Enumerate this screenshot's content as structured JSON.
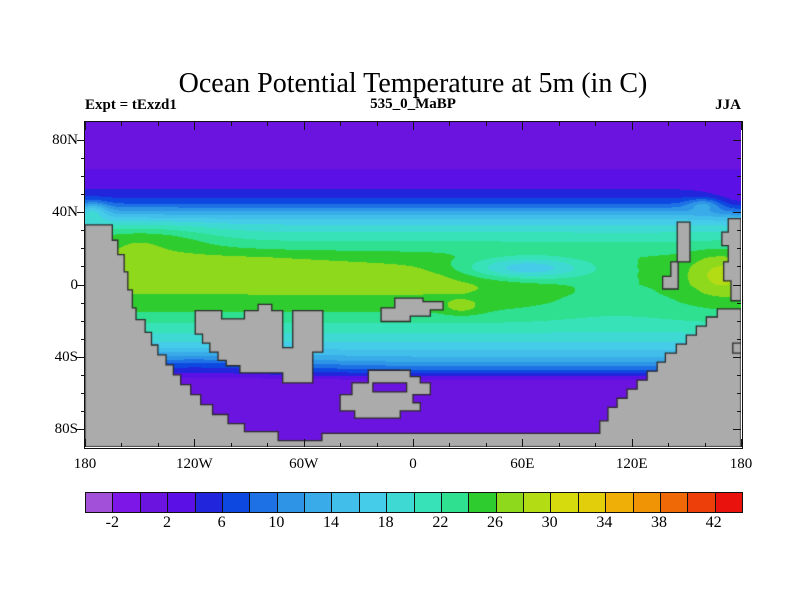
{
  "header": {
    "title": "Ocean Potential Temperature at 5m (in C)",
    "subtitle": "535_0_MaBP",
    "experiment_label": "Expt = tExzd1",
    "season_label": "JJA"
  },
  "axes": {
    "x": {
      "major_ticks": [
        {
          "lon": -180,
          "label": "180"
        },
        {
          "lon": -120,
          "label": "120W"
        },
        {
          "lon": -60,
          "label": "60W"
        },
        {
          "lon": 0,
          "label": "0"
        },
        {
          "lon": 60,
          "label": "60E"
        },
        {
          "lon": 120,
          "label": "120E"
        },
        {
          "lon": 180,
          "label": "180"
        }
      ],
      "minor_step_deg": 20
    },
    "y": {
      "major_ticks": [
        {
          "lat": 80,
          "label": "80N"
        },
        {
          "lat": 40,
          "label": "40N"
        },
        {
          "lat": 0,
          "label": "0"
        },
        {
          "lat": -40,
          "label": "40S"
        },
        {
          "lat": -80,
          "label": "80S"
        }
      ],
      "minor_step_deg": 10
    }
  },
  "colorbar": {
    "level_min": -4,
    "level_step": 2,
    "n_cells": 24,
    "tick_labels": [
      "-2",
      "2",
      "6",
      "10",
      "14",
      "18",
      "22",
      "26",
      "30",
      "34",
      "38",
      "42"
    ],
    "colors": [
      "#A24FD9",
      "#7C17E8",
      "#6C14DF",
      "#5B11E5",
      "#2125DC",
      "#0D49E0",
      "#1E71E4",
      "#2E95E6",
      "#38ABE8",
      "#41BFEA",
      "#45CCE8",
      "#3FD9D4",
      "#37E2B8",
      "#2EE090",
      "#2FCC30",
      "#8FD91C",
      "#B4DC14",
      "#D6DB0E",
      "#E3CE0B",
      "#EFAF07",
      "#F09305",
      "#EF6A06",
      "#ED3F09",
      "#EA120C"
    ]
  },
  "chart_data": {
    "type": "heatmap",
    "subtype": "filled-contour-map",
    "title": "Ocean Potential Temperature at 5m (in C)",
    "units": "C",
    "xlabel_ticks": [
      "180",
      "120W",
      "60W",
      "0",
      "60E",
      "120E",
      "180"
    ],
    "ylabel_ticks": [
      "80N",
      "40N",
      "0",
      "40S",
      "80S"
    ],
    "lon_range": [
      -180,
      180
    ],
    "lat_range": [
      -90,
      90
    ],
    "contour_levels_c": [
      -2,
      0,
      2,
      4,
      6,
      8,
      10,
      12,
      14,
      16,
      18,
      20,
      22,
      24,
      26,
      28,
      30,
      32,
      34,
      36,
      38,
      40,
      42
    ],
    "zonal_profile_lat_tempC": [
      [
        90,
        0.8
      ],
      [
        68,
        1.6
      ],
      [
        60,
        2.4
      ],
      [
        54,
        3.6
      ],
      [
        50,
        5.0
      ],
      [
        47,
        6.4
      ],
      [
        45,
        7.8
      ],
      [
        43,
        9.6
      ],
      [
        41,
        11.5
      ],
      [
        39,
        13.4
      ],
      [
        37,
        15.4
      ],
      [
        34.5,
        17.2
      ],
      [
        32,
        18.7
      ],
      [
        28,
        20.4
      ],
      [
        24,
        22.0
      ],
      [
        20,
        23.4
      ],
      [
        15,
        24.9
      ],
      [
        10,
        25.7
      ],
      [
        5,
        26.2
      ],
      [
        0,
        26.4
      ],
      [
        -5,
        26.0
      ],
      [
        -10,
        25.2
      ],
      [
        -15,
        24.0
      ],
      [
        -20,
        22.5
      ],
      [
        -25,
        20.8
      ],
      [
        -29,
        19.3
      ],
      [
        -33,
        17.6
      ],
      [
        -36,
        16.2
      ],
      [
        -39,
        14.6
      ],
      [
        -42,
        12.8
      ],
      [
        -44,
        11.0
      ],
      [
        -46,
        9.2
      ],
      [
        -48,
        7.2
      ],
      [
        -50,
        5.0
      ],
      [
        -51.5,
        3.2
      ],
      [
        -53,
        1.8
      ],
      [
        -90,
        0.8
      ]
    ],
    "anomalies": [
      {
        "name": "west-tropical-warm-stripe",
        "lon": -120,
        "lat": 11,
        "amp": 1.8,
        "sx": 55,
        "sy": 5.5
      },
      {
        "name": "central-equatorial-warm-lobe",
        "lon": -35,
        "lat": 4,
        "amp": 1.4,
        "sx": 45,
        "sy": 4.5
      },
      {
        "name": "far-east-warm-pool",
        "lon": 168,
        "lat": 6,
        "amp": 3.0,
        "sx": 11,
        "sy": 8
      },
      {
        "name": "cold-tongue-10N",
        "lon": 62,
        "lat": 9,
        "amp": -8.5,
        "sx": 24,
        "sy": 4.5
      },
      {
        "name": "west-boundary-warm-40N",
        "lon": -176,
        "lat": 41,
        "amp": 6,
        "sx": 6,
        "sy": 3.5
      },
      {
        "name": "northeast-cool",
        "lon": 179,
        "lat": 45,
        "amp": -3,
        "sx": 14,
        "sy": 6
      },
      {
        "name": "southwest-coastal-cool",
        "lon": -120,
        "lat": -44,
        "amp": -3.5,
        "sx": 45,
        "sy": 5
      },
      {
        "name": "small-warm-spot-27E-13S",
        "lon": 27,
        "lat": -13,
        "amp": 2.2,
        "sx": 8,
        "sy": 3
      },
      {
        "name": "east-equatorial-cool",
        "lon": 112,
        "lat": -3,
        "amp": -2.6,
        "sx": 33,
        "sy": 12
      },
      {
        "name": "east-boundary-warm-44N",
        "lon": 160,
        "lat": 44.5,
        "amp": 5,
        "sx": 7,
        "sy": 2.5
      },
      {
        "name": "west-subtropical-warm",
        "lon": -150,
        "lat": 26,
        "amp": 4,
        "sx": 28,
        "sy": 6
      }
    ],
    "land": {
      "fill": "#ABABAB",
      "outline": "#2B2B2B",
      "polygons": [
        {
          "name": "southern-supercontinent",
          "rings": [
            [
              [
                -180,
                33
              ],
              [
                -165,
                33
              ],
              [
                -165,
                24.5
              ],
              [
                -162,
                24.5
              ],
              [
                -162,
                16.5
              ],
              [
                -158.5,
                16.5
              ],
              [
                -158.5,
                7
              ],
              [
                -156.5,
                7
              ],
              [
                -156.5,
                -3
              ],
              [
                -154,
                -3
              ],
              [
                -154,
                -13
              ],
              [
                -152,
                -13
              ],
              [
                -152,
                -19.5
              ],
              [
                -147,
                -19.5
              ],
              [
                -147,
                -26.5
              ],
              [
                -143.5,
                -26.5
              ],
              [
                -143.5,
                -33.5
              ],
              [
                -140,
                -33.5
              ],
              [
                -140,
                -39
              ],
              [
                -135.5,
                -39
              ],
              [
                -135.5,
                -44.5
              ],
              [
                -131.5,
                -44.5
              ],
              [
                -131.5,
                -50
              ],
              [
                -127.5,
                -50
              ],
              [
                -127.5,
                -55.5
              ],
              [
                -122,
                -55.5
              ],
              [
                -122,
                -61
              ],
              [
                -116.5,
                -61
              ],
              [
                -116.5,
                -66.5
              ],
              [
                -110,
                -66.5
              ],
              [
                -110,
                -72
              ],
              [
                -101.5,
                -72
              ],
              [
                -101.5,
                -77
              ],
              [
                -92.5,
                -77
              ],
              [
                -92.5,
                -81.5
              ],
              [
                -74,
                -81.5
              ],
              [
                -74,
                -86.5
              ],
              [
                -50,
                -86.5
              ],
              [
                -50,
                -82.5
              ],
              [
                102.5,
                -82.5
              ],
              [
                102.5,
                -75.5
              ],
              [
                107,
                -75.5
              ],
              [
                107,
                -68
              ],
              [
                112,
                -68
              ],
              [
                112,
                -63
              ],
              [
                117.5,
                -63
              ],
              [
                117.5,
                -58
              ],
              [
                123,
                -58
              ],
              [
                123,
                -53
              ],
              [
                128.5,
                -53
              ],
              [
                128.5,
                -48
              ],
              [
                134,
                -48
              ],
              [
                134,
                -43
              ],
              [
                138.5,
                -43
              ],
              [
                138.5,
                -38
              ],
              [
                144.5,
                -38
              ],
              [
                144.5,
                -33
              ],
              [
                150,
                -33
              ],
              [
                150,
                -28
              ],
              [
                155.5,
                -28
              ],
              [
                155.5,
                -23
              ],
              [
                161,
                -23
              ],
              [
                161,
                -18
              ],
              [
                167,
                -18
              ],
              [
                167,
                -13.5
              ],
              [
                180,
                -13.5
              ],
              [
                180,
                -90
              ],
              [
                -180,
                -90
              ]
            ]
          ]
        },
        {
          "name": "midlatitude-hook-landmass",
          "rings": [
            [
              [
                -119.5,
                -14.5
              ],
              [
                -105,
                -14.5
              ],
              [
                -105,
                -19
              ],
              [
                -92.5,
                -19
              ],
              [
                -92.5,
                -14.5
              ],
              [
                -85,
                -14.5
              ],
              [
                -85,
                -11
              ],
              [
                -77.5,
                -11
              ],
              [
                -77.5,
                -14.5
              ],
              [
                -71.5,
                -14.5
              ],
              [
                -71.5,
                -35
              ],
              [
                -66,
                -35
              ],
              [
                -66,
                -14.5
              ],
              [
                -49.5,
                -14.5
              ],
              [
                -49.5,
                -37.5
              ],
              [
                -55,
                -37.5
              ],
              [
                -55,
                -54.5
              ],
              [
                -71.5,
                -54.5
              ],
              [
                -71.5,
                -49
              ],
              [
                -95,
                -49
              ],
              [
                -95,
                -45
              ],
              [
                -102.5,
                -45
              ],
              [
                -102.5,
                -42
              ],
              [
                -107,
                -42
              ],
              [
                -107,
                -37.5
              ],
              [
                -111.5,
                -37.5
              ],
              [
                -111.5,
                -32.5
              ],
              [
                -115.5,
                -32.5
              ],
              [
                -115.5,
                -27.5
              ],
              [
                -119.5,
                -27.5
              ]
            ]
          ]
        },
        {
          "name": "equatorial-island",
          "rings": [
            [
              [
                -17.5,
                -13
              ],
              [
                -10,
                -13
              ],
              [
                -10,
                -7.5
              ],
              [
                5.5,
                -7.5
              ],
              [
                5.5,
                -9.5
              ],
              [
                16.5,
                -9.5
              ],
              [
                16.5,
                -14
              ],
              [
                9.5,
                -14
              ],
              [
                9.5,
                -17.5
              ],
              [
                -1.5,
                -17.5
              ],
              [
                -1.5,
                -20.5
              ],
              [
                -17.5,
                -20.5
              ]
            ]
          ]
        },
        {
          "name": "ring-island-group",
          "rings": [
            [
              [
                -24.5,
                -47.5
              ],
              [
                -1.5,
                -47.5
              ],
              [
                -1.5,
                -51
              ],
              [
                4,
                -51
              ],
              [
                4,
                -54.5
              ],
              [
                9.5,
                -54.5
              ],
              [
                9.5,
                -61
              ],
              [
                0,
                -61
              ],
              [
                0,
                -65.5
              ],
              [
                4,
                -65.5
              ],
              [
                4,
                -70
              ],
              [
                -7,
                -70
              ],
              [
                -7,
                -74
              ],
              [
                -32,
                -74
              ],
              [
                -32,
                -70
              ],
              [
                -40,
                -70
              ],
              [
                -40,
                -61
              ],
              [
                -33.5,
                -61
              ],
              [
                -33.5,
                -54.5
              ],
              [
                -24.5,
                -54.5
              ]
            ],
            [
              [
                -22,
                -54.5
              ],
              [
                -3.5,
                -54.5
              ],
              [
                -3.5,
                -59.5
              ],
              [
                -22,
                -59.5
              ]
            ]
          ]
        },
        {
          "name": "northeast-strip",
          "rings": [
            [
              [
                145,
                34.5
              ],
              [
                152,
                34.5
              ],
              [
                152,
                12.5
              ],
              [
                145.5,
                12.5
              ],
              [
                145.5,
                -2.5
              ],
              [
                137,
                -2.5
              ],
              [
                137,
                4.5
              ],
              [
                141.5,
                4.5
              ],
              [
                141.5,
                12.5
              ],
              [
                145,
                12.5
              ]
            ]
          ]
        },
        {
          "name": "right-edge-north-land",
          "rings": [
            [
              [
                180,
                36.5
              ],
              [
                173,
                36.5
              ],
              [
                173,
                29
              ],
              [
                169.5,
                29
              ],
              [
                169.5,
                21.5
              ],
              [
                173,
                21.5
              ],
              [
                173,
                12.5
              ],
              [
                170.5,
                12.5
              ],
              [
                170.5,
                2
              ],
              [
                174.5,
                2
              ],
              [
                174.5,
                -9
              ],
              [
                180,
                -9
              ]
            ]
          ]
        },
        {
          "name": "right-edge-notch",
          "rings": [
            [
              [
                175.5,
                -32.5
              ],
              [
                180,
                -32.5
              ],
              [
                180,
                -38
              ],
              [
                175.5,
                -38
              ]
            ]
          ]
        }
      ]
    },
    "legend": {
      "position": "bottom",
      "labels": [
        "-2",
        "2",
        "6",
        "10",
        "14",
        "18",
        "22",
        "26",
        "30",
        "34",
        "38",
        "42"
      ]
    },
    "grid": false
  },
  "colors": {
    "background": "#FFFFFF",
    "frame": "#111111",
    "land": "#ABABAB",
    "land_outline": "#2B2B2B"
  }
}
